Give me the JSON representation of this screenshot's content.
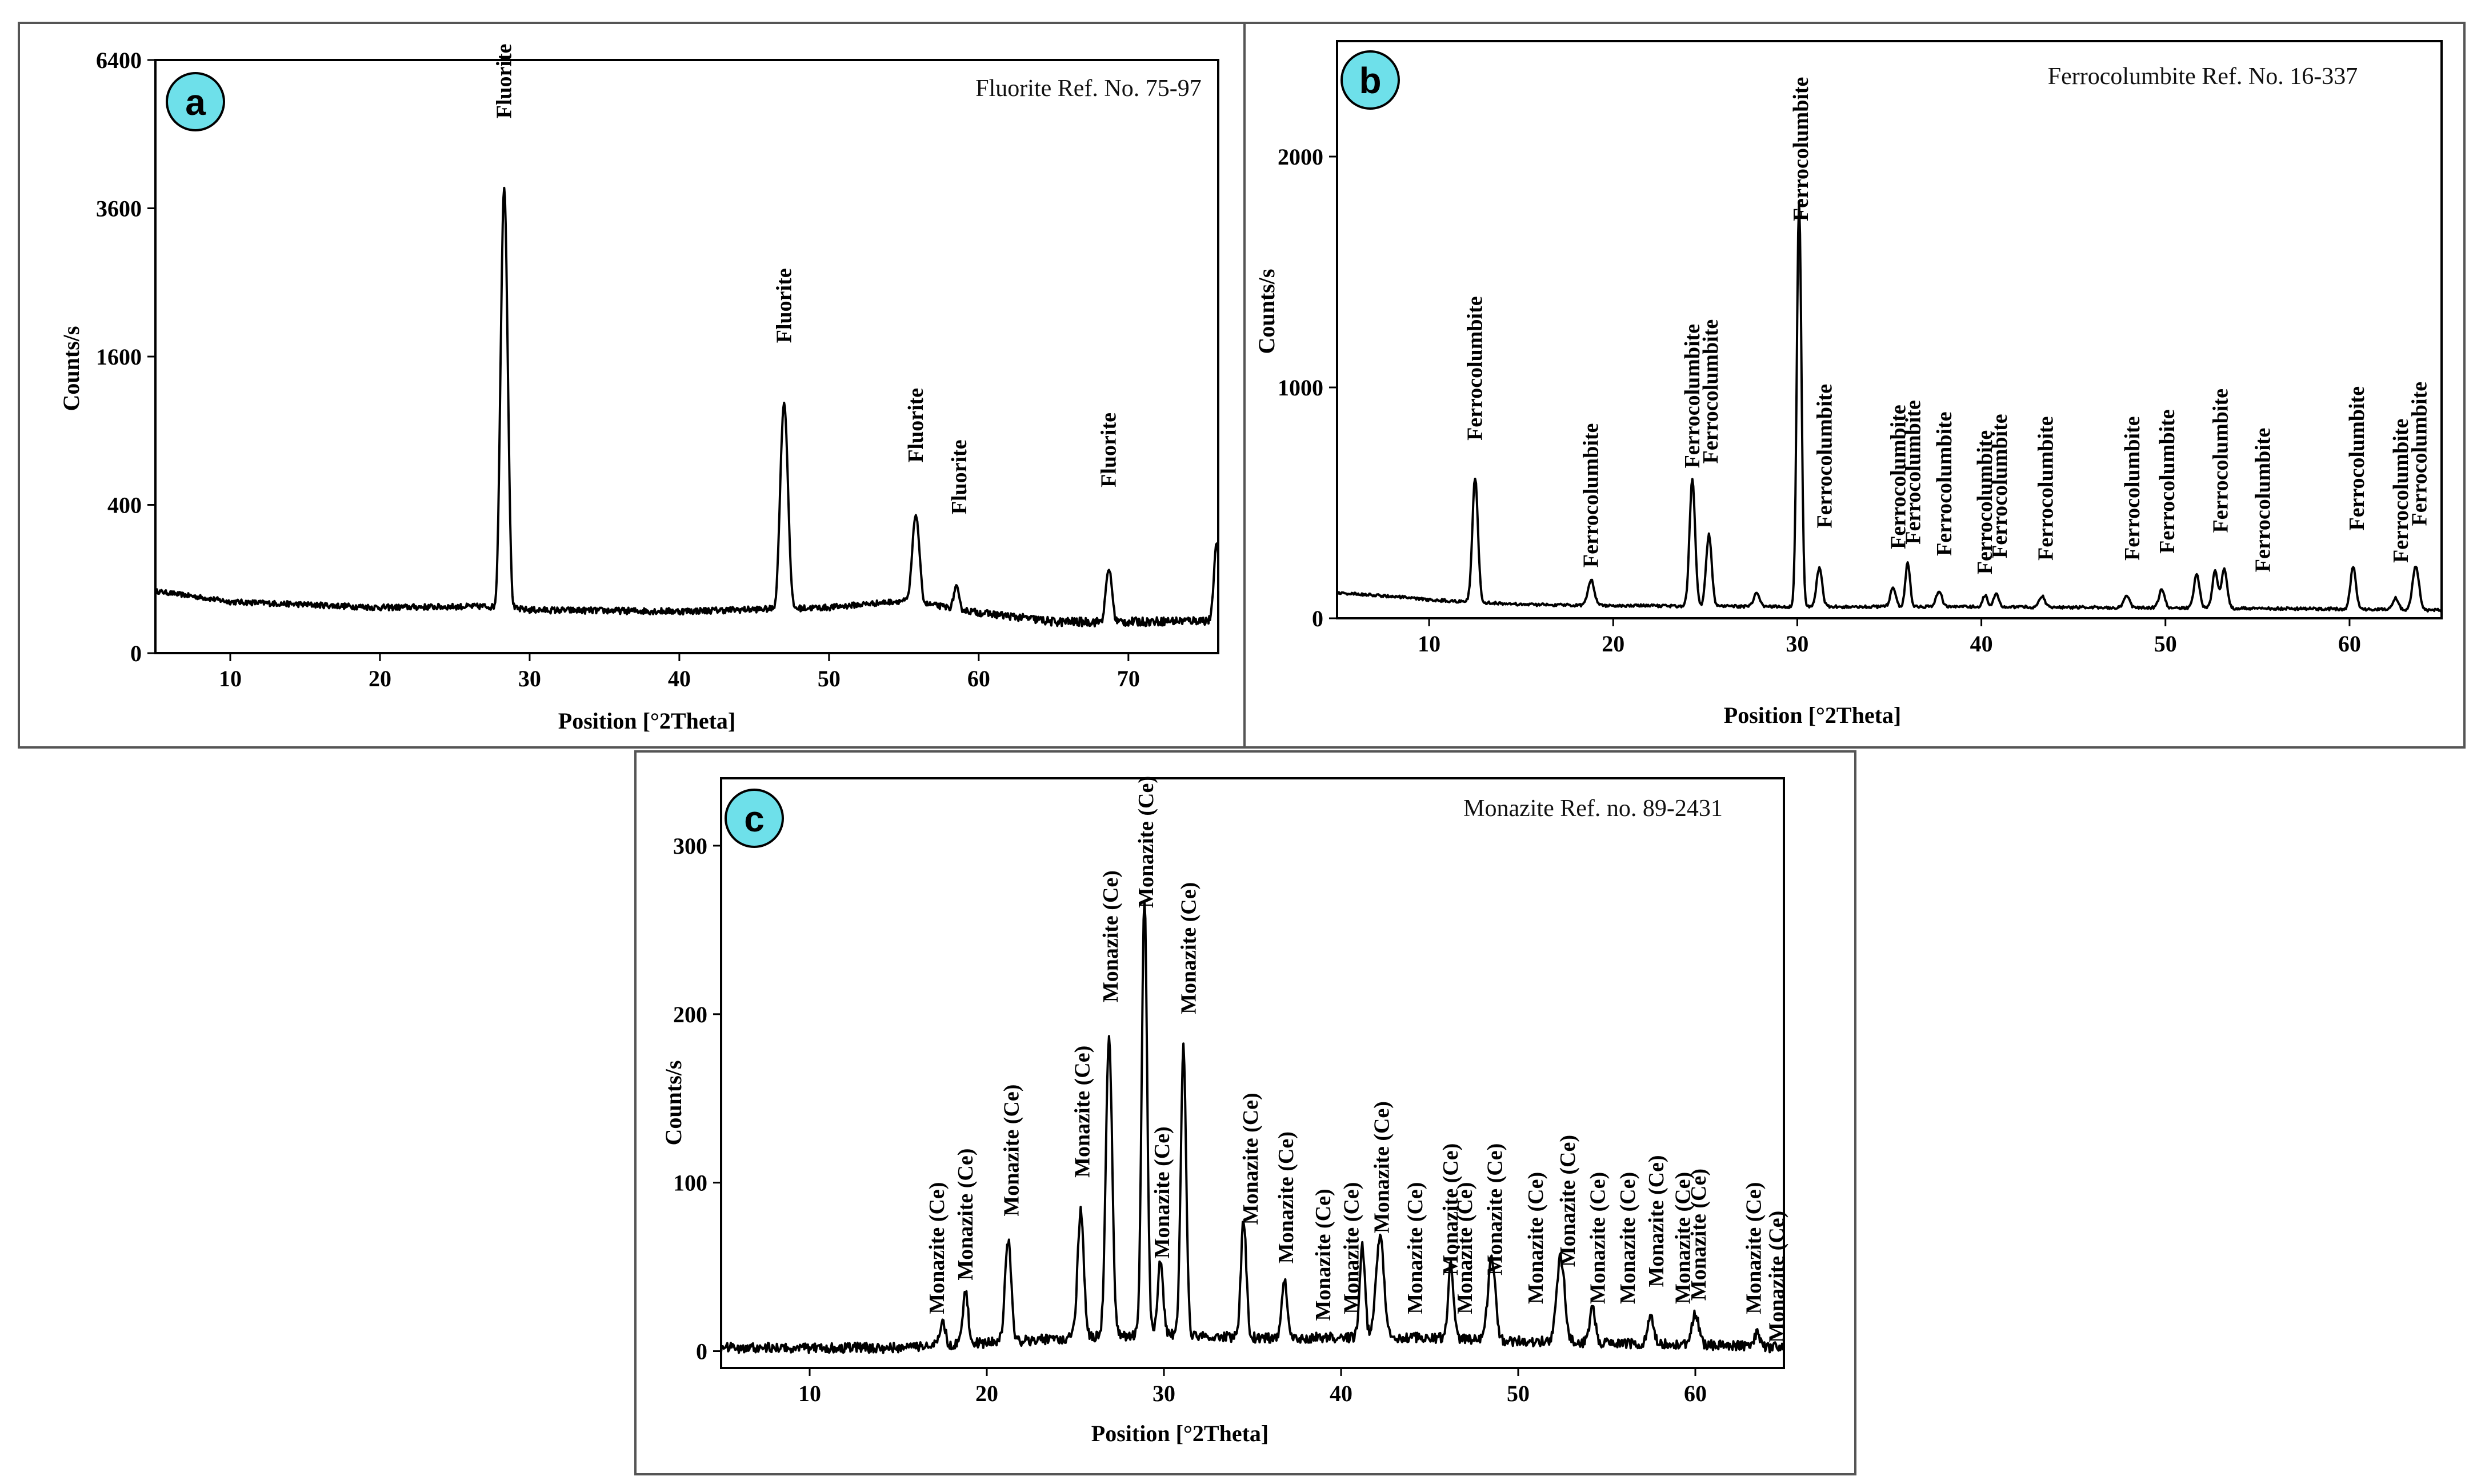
{
  "chart_data": [
    {
      "panel": "a",
      "type": "line",
      "reference": "Fluorite Ref. No. 75-97",
      "xlabel": "Position [°2Theta]",
      "ylabel": "Counts/s",
      "xlim": [
        5,
        76
      ],
      "xticks": [
        10,
        20,
        30,
        40,
        50,
        60,
        70
      ],
      "yscale": "sqrt",
      "ylim": [
        0,
        6400
      ],
      "yticks": [
        0,
        400,
        1600,
        3600,
        6400
      ],
      "baseline": [
        [
          5,
          70
        ],
        [
          10,
          48
        ],
        [
          20,
          38
        ],
        [
          27,
          40
        ],
        [
          30,
          34
        ],
        [
          40,
          32
        ],
        [
          50,
          38
        ],
        [
          55,
          50
        ],
        [
          60,
          30
        ],
        [
          65,
          18
        ],
        [
          70,
          18
        ],
        [
          76,
          20
        ]
      ],
      "peaks": [
        {
          "x": 28.3,
          "y": 3900,
          "w": 0.35,
          "label": "Fluorite"
        },
        {
          "x": 47.0,
          "y": 1100,
          "w": 0.4,
          "label": "Fluorite"
        },
        {
          "x": 55.8,
          "y": 300,
          "w": 0.4,
          "label": "Fluorite"
        },
        {
          "x": 58.5,
          "y": 45,
          "w": 0.3,
          "label": "Fluorite"
        },
        {
          "x": 68.7,
          "y": 110,
          "w": 0.35,
          "label": "Fluorite"
        },
        {
          "x": 75.9,
          "y": 200,
          "w": 0.3,
          "label": ""
        }
      ],
      "labels": [
        {
          "x": 28.3,
          "y": 5200,
          "text": "Fluorite"
        },
        {
          "x": 47.0,
          "y": 1750,
          "text": "Fluorite"
        },
        {
          "x": 55.8,
          "y": 660,
          "text": "Fluorite"
        },
        {
          "x": 58.7,
          "y": 350,
          "text": "Fluorite"
        },
        {
          "x": 68.7,
          "y": 500,
          "text": "Fluorite"
        }
      ]
    },
    {
      "panel": "b",
      "type": "line",
      "reference": "Ferrocolumbite Ref. No. 16-337",
      "xlabel": "Position [°2Theta]",
      "ylabel": "Counts/s",
      "xlim": [
        5,
        65
      ],
      "xticks": [
        10,
        20,
        30,
        40,
        50,
        60
      ],
      "yscale": "linear",
      "ylim": [
        0,
        2500
      ],
      "yticks": [
        0,
        1000,
        2000
      ],
      "baseline": [
        [
          5,
          110
        ],
        [
          8,
          95
        ],
        [
          10,
          80
        ],
        [
          15,
          60
        ],
        [
          20,
          55
        ],
        [
          30,
          50
        ],
        [
          40,
          50
        ],
        [
          50,
          45
        ],
        [
          60,
          40
        ],
        [
          65,
          35
        ]
      ],
      "peaks": [
        {
          "x": 12.5,
          "y": 540,
          "w": 0.3
        },
        {
          "x": 18.8,
          "y": 110,
          "w": 0.35
        },
        {
          "x": 24.3,
          "y": 550,
          "w": 0.3
        },
        {
          "x": 25.2,
          "y": 310,
          "w": 0.3
        },
        {
          "x": 27.8,
          "y": 60,
          "w": 0.3
        },
        {
          "x": 30.1,
          "y": 1750,
          "w": 0.25
        },
        {
          "x": 31.2,
          "y": 170,
          "w": 0.3
        },
        {
          "x": 35.2,
          "y": 80,
          "w": 0.3
        },
        {
          "x": 36.0,
          "y": 190,
          "w": 0.25
        },
        {
          "x": 37.7,
          "y": 70,
          "w": 0.3
        },
        {
          "x": 40.2,
          "y": 50,
          "w": 0.25
        },
        {
          "x": 40.8,
          "y": 60,
          "w": 0.25
        },
        {
          "x": 43.3,
          "y": 50,
          "w": 0.3
        },
        {
          "x": 47.9,
          "y": 50,
          "w": 0.3
        },
        {
          "x": 49.8,
          "y": 80,
          "w": 0.3
        },
        {
          "x": 51.7,
          "y": 150,
          "w": 0.3
        },
        {
          "x": 52.7,
          "y": 160,
          "w": 0.3
        },
        {
          "x": 53.2,
          "y": 170,
          "w": 0.3
        },
        {
          "x": 60.2,
          "y": 180,
          "w": 0.3
        },
        {
          "x": 62.5,
          "y": 50,
          "w": 0.3
        },
        {
          "x": 63.6,
          "y": 190,
          "w": 0.35
        }
      ],
      "labels": [
        {
          "x": 12.5,
          "y": 770,
          "text": "Ferrocolumbite"
        },
        {
          "x": 18.8,
          "y": 220,
          "text": "Ferrocolumbite"
        },
        {
          "x": 24.3,
          "y": 650,
          "text": "Ferrocolumbite"
        },
        {
          "x": 25.3,
          "y": 670,
          "text": "Ferrocolumbite"
        },
        {
          "x": 30.2,
          "y": 1720,
          "text": "Ferrocolumbite"
        },
        {
          "x": 31.5,
          "y": 390,
          "text": "Ferrocolumbite"
        },
        {
          "x": 35.5,
          "y": 300,
          "text": "Ferrocolumbite"
        },
        {
          "x": 36.3,
          "y": 320,
          "text": "Ferrocolumbite"
        },
        {
          "x": 38.0,
          "y": 270,
          "text": "Ferrocolumbite"
        },
        {
          "x": 40.2,
          "y": 190,
          "text": "Ferrocolumbite"
        },
        {
          "x": 41.0,
          "y": 260,
          "text": "Ferrocolumbite"
        },
        {
          "x": 43.5,
          "y": 250,
          "text": "Ferrocolumbite"
        },
        {
          "x": 48.2,
          "y": 250,
          "text": "Ferrocolumbite"
        },
        {
          "x": 50.1,
          "y": 280,
          "text": "Ferrocolumbite"
        },
        {
          "x": 53.0,
          "y": 370,
          "text": "Ferrocolumbite"
        },
        {
          "x": 55.3,
          "y": 200,
          "text": "Ferrocolumbite"
        },
        {
          "x": 60.4,
          "y": 380,
          "text": "Ferrocolumbite"
        },
        {
          "x": 62.8,
          "y": 240,
          "text": "Ferrocolumbite"
        },
        {
          "x": 63.8,
          "y": 400,
          "text": "Ferrocolumbite"
        }
      ]
    },
    {
      "panel": "c",
      "type": "line",
      "reference": "Monazite Ref. no. 89-2431",
      "xlabel": "Position [°2Theta]",
      "ylabel": "Counts/s",
      "xlim": [
        5,
        65
      ],
      "xticks": [
        10,
        20,
        30,
        40,
        50,
        60
      ],
      "yscale": "linear",
      "ylim": [
        -10,
        340
      ],
      "yticks": [
        0,
        100,
        200,
        300
      ],
      "baseline": [
        [
          5,
          2
        ],
        [
          15,
          2
        ],
        [
          20,
          5
        ],
        [
          25,
          8
        ],
        [
          30,
          10
        ],
        [
          35,
          8
        ],
        [
          40,
          8
        ],
        [
          45,
          8
        ],
        [
          50,
          6
        ],
        [
          55,
          5
        ],
        [
          60,
          4
        ],
        [
          65,
          2
        ]
      ],
      "peaks": [
        {
          "x": 17.5,
          "y": 15,
          "w": 0.3
        },
        {
          "x": 18.8,
          "y": 30,
          "w": 0.3
        },
        {
          "x": 21.2,
          "y": 60,
          "w": 0.35
        },
        {
          "x": 25.3,
          "y": 75,
          "w": 0.35
        },
        {
          "x": 26.9,
          "y": 180,
          "w": 0.35
        },
        {
          "x": 28.9,
          "y": 260,
          "w": 0.3
        },
        {
          "x": 29.8,
          "y": 45,
          "w": 0.3
        },
        {
          "x": 31.1,
          "y": 170,
          "w": 0.3
        },
        {
          "x": 34.5,
          "y": 70,
          "w": 0.3
        },
        {
          "x": 36.8,
          "y": 35,
          "w": 0.3
        },
        {
          "x": 41.2,
          "y": 55,
          "w": 0.3
        },
        {
          "x": 42.2,
          "y": 60,
          "w": 0.45
        },
        {
          "x": 46.2,
          "y": 45,
          "w": 0.3
        },
        {
          "x": 48.5,
          "y": 50,
          "w": 0.4
        },
        {
          "x": 52.4,
          "y": 50,
          "w": 0.45
        },
        {
          "x": 54.2,
          "y": 20,
          "w": 0.3
        },
        {
          "x": 57.5,
          "y": 15,
          "w": 0.35
        },
        {
          "x": 60.0,
          "y": 18,
          "w": 0.4
        },
        {
          "x": 63.5,
          "y": 8,
          "w": 0.3
        }
      ],
      "labels": [
        {
          "x": 17.2,
          "y": 22,
          "text": "Monazite (Ce)"
        },
        {
          "x": 18.8,
          "y": 42,
          "text": "Monazite (Ce)"
        },
        {
          "x": 21.4,
          "y": 80,
          "text": "Monazite (Ce)"
        },
        {
          "x": 25.4,
          "y": 103,
          "text": "Monazite (Ce)"
        },
        {
          "x": 27.0,
          "y": 207,
          "text": "Monazite (Ce)"
        },
        {
          "x": 29.0,
          "y": 263,
          "text": "Monazite (Ce)"
        },
        {
          "x": 29.9,
          "y": 55,
          "text": "Monazite (Ce)"
        },
        {
          "x": 31.4,
          "y": 200,
          "text": "Monazite (Ce)"
        },
        {
          "x": 34.9,
          "y": 75,
          "text": "Monazite (Ce)"
        },
        {
          "x": 36.9,
          "y": 52,
          "text": "Monazite (Ce)"
        },
        {
          "x": 39.0,
          "y": 18,
          "text": "Monazite (Ce)"
        },
        {
          "x": 40.6,
          "y": 22,
          "text": "Monazite (Ce)"
        },
        {
          "x": 42.3,
          "y": 70,
          "text": "Monazite (Ce)"
        },
        {
          "x": 44.2,
          "y": 22,
          "text": "Monazite (Ce)"
        },
        {
          "x": 46.2,
          "y": 45,
          "text": "Monazite (Ce)"
        },
        {
          "x": 47.0,
          "y": 22,
          "text": "Monazite (Ce)"
        },
        {
          "x": 48.7,
          "y": 45,
          "text": "Monazite (Ce)"
        },
        {
          "x": 51.0,
          "y": 28,
          "text": "Monazite (Ce)"
        },
        {
          "x": 52.8,
          "y": 50,
          "text": "Monazite (Ce)"
        },
        {
          "x": 54.5,
          "y": 28,
          "text": "Monazite (Ce)"
        },
        {
          "x": 56.2,
          "y": 28,
          "text": "Monazite (Ce)"
        },
        {
          "x": 57.8,
          "y": 38,
          "text": "Monazite (Ce)"
        },
        {
          "x": 59.3,
          "y": 28,
          "text": "Monazite (Ce)"
        },
        {
          "x": 60.2,
          "y": 30,
          "text": "Monazite (Ce)"
        },
        {
          "x": 63.3,
          "y": 22,
          "text": "Monazite (Ce)"
        },
        {
          "x": 64.6,
          "y": 5,
          "text": "Monazite (Ce)"
        }
      ]
    }
  ]
}
